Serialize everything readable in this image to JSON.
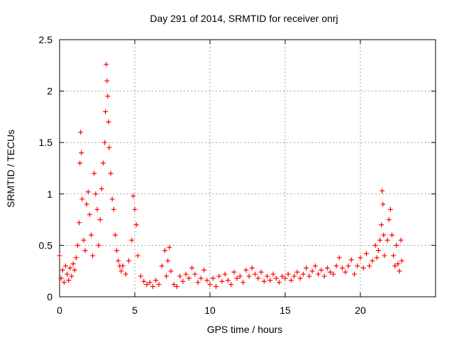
{
  "chart_data": {
    "type": "scatter",
    "title": "Day 291 of 2014, SRMTID for receiver onrj",
    "xlabel": "GPS time / hours",
    "ylabel": "SRMTID / TECUs",
    "xlim": [
      0,
      25
    ],
    "ylim": [
      0,
      2.5
    ],
    "xticks": [
      0,
      5,
      10,
      15,
      20
    ],
    "xtick_labels": [
      "0",
      "5",
      "10",
      "15",
      "20"
    ],
    "yticks": [
      0,
      0.5,
      1,
      1.5,
      2,
      2.5
    ],
    "ytick_labels": [
      "0",
      "0.5",
      "1",
      "1.5",
      "2",
      "2.5"
    ],
    "grid": true,
    "marker": "+",
    "marker_color": "#ff0000",
    "series": [
      {
        "name": "SRMTID",
        "points": [
          [
            0.0,
            0.4
          ],
          [
            0.1,
            0.18
          ],
          [
            0.2,
            0.26
          ],
          [
            0.3,
            0.14
          ],
          [
            0.4,
            0.3
          ],
          [
            0.5,
            0.22
          ],
          [
            0.6,
            0.16
          ],
          [
            0.7,
            0.28
          ],
          [
            0.8,
            0.2
          ],
          [
            0.9,
            0.32
          ],
          [
            1.0,
            0.26
          ],
          [
            1.1,
            0.38
          ],
          [
            1.2,
            0.5
          ],
          [
            1.3,
            0.72
          ],
          [
            1.35,
            1.3
          ],
          [
            1.4,
            1.6
          ],
          [
            1.45,
            1.4
          ],
          [
            1.5,
            0.95
          ],
          [
            1.6,
            0.55
          ],
          [
            1.7,
            0.45
          ],
          [
            1.8,
            0.9
          ],
          [
            1.9,
            1.02
          ],
          [
            2.0,
            0.8
          ],
          [
            2.1,
            0.6
          ],
          [
            2.2,
            0.4
          ],
          [
            2.3,
            1.2
          ],
          [
            2.4,
            1.0
          ],
          [
            2.5,
            0.85
          ],
          [
            2.6,
            0.5
          ],
          [
            2.7,
            0.75
          ],
          [
            2.8,
            1.05
          ],
          [
            2.9,
            1.3
          ],
          [
            3.0,
            1.5
          ],
          [
            3.05,
            1.8
          ],
          [
            3.1,
            2.26
          ],
          [
            3.15,
            2.1
          ],
          [
            3.2,
            1.95
          ],
          [
            3.25,
            1.7
          ],
          [
            3.3,
            1.45
          ],
          [
            3.4,
            1.2
          ],
          [
            3.5,
            0.95
          ],
          [
            3.6,
            0.85
          ],
          [
            3.7,
            0.6
          ],
          [
            3.8,
            0.45
          ],
          [
            3.9,
            0.35
          ],
          [
            4.0,
            0.3
          ],
          [
            4.1,
            0.25
          ],
          [
            4.2,
            0.3
          ],
          [
            4.4,
            0.22
          ],
          [
            4.6,
            0.35
          ],
          [
            4.8,
            0.55
          ],
          [
            4.9,
            0.98
          ],
          [
            5.0,
            0.85
          ],
          [
            5.1,
            0.7
          ],
          [
            5.2,
            0.4
          ],
          [
            5.4,
            0.2
          ],
          [
            5.6,
            0.15
          ],
          [
            5.8,
            0.12
          ],
          [
            6.0,
            0.14
          ],
          [
            6.2,
            0.1
          ],
          [
            6.4,
            0.16
          ],
          [
            6.6,
            0.12
          ],
          [
            6.8,
            0.3
          ],
          [
            7.0,
            0.45
          ],
          [
            7.1,
            0.2
          ],
          [
            7.2,
            0.35
          ],
          [
            7.3,
            0.48
          ],
          [
            7.4,
            0.25
          ],
          [
            7.6,
            0.12
          ],
          [
            7.8,
            0.1
          ],
          [
            8.0,
            0.2
          ],
          [
            8.2,
            0.15
          ],
          [
            8.4,
            0.22
          ],
          [
            8.6,
            0.18
          ],
          [
            8.8,
            0.28
          ],
          [
            9.0,
            0.22
          ],
          [
            9.2,
            0.14
          ],
          [
            9.4,
            0.18
          ],
          [
            9.6,
            0.26
          ],
          [
            9.8,
            0.16
          ],
          [
            10.0,
            0.12
          ],
          [
            10.2,
            0.18
          ],
          [
            10.4,
            0.1
          ],
          [
            10.6,
            0.2
          ],
          [
            10.8,
            0.15
          ],
          [
            11.0,
            0.22
          ],
          [
            11.2,
            0.16
          ],
          [
            11.4,
            0.12
          ],
          [
            11.6,
            0.24
          ],
          [
            11.8,
            0.18
          ],
          [
            12.0,
            0.2
          ],
          [
            12.2,
            0.14
          ],
          [
            12.4,
            0.26
          ],
          [
            12.6,
            0.2
          ],
          [
            12.8,
            0.28
          ],
          [
            13.0,
            0.22
          ],
          [
            13.2,
            0.18
          ],
          [
            13.4,
            0.24
          ],
          [
            13.6,
            0.15
          ],
          [
            13.8,
            0.2
          ],
          [
            14.0,
            0.16
          ],
          [
            14.2,
            0.22
          ],
          [
            14.4,
            0.18
          ],
          [
            14.6,
            0.14
          ],
          [
            14.8,
            0.2
          ],
          [
            15.0,
            0.18
          ],
          [
            15.2,
            0.22
          ],
          [
            15.4,
            0.16
          ],
          [
            15.6,
            0.2
          ],
          [
            15.8,
            0.24
          ],
          [
            16.0,
            0.18
          ],
          [
            16.2,
            0.22
          ],
          [
            16.4,
            0.28
          ],
          [
            16.6,
            0.2
          ],
          [
            16.8,
            0.25
          ],
          [
            17.0,
            0.3
          ],
          [
            17.2,
            0.22
          ],
          [
            17.4,
            0.26
          ],
          [
            17.6,
            0.2
          ],
          [
            17.8,
            0.28
          ],
          [
            18.0,
            0.24
          ],
          [
            18.2,
            0.22
          ],
          [
            18.4,
            0.3
          ],
          [
            18.6,
            0.38
          ],
          [
            18.8,
            0.28
          ],
          [
            19.0,
            0.24
          ],
          [
            19.2,
            0.3
          ],
          [
            19.4,
            0.36
          ],
          [
            19.6,
            0.22
          ],
          [
            19.8,
            0.3
          ],
          [
            20.0,
            0.38
          ],
          [
            20.2,
            0.28
          ],
          [
            20.4,
            0.42
          ],
          [
            20.6,
            0.3
          ],
          [
            20.8,
            0.35
          ],
          [
            21.0,
            0.5
          ],
          [
            21.1,
            0.38
          ],
          [
            21.2,
            0.45
          ],
          [
            21.3,
            0.55
          ],
          [
            21.4,
            0.7
          ],
          [
            21.45,
            1.03
          ],
          [
            21.5,
            0.9
          ],
          [
            21.55,
            0.6
          ],
          [
            21.6,
            0.4
          ],
          [
            21.8,
            0.55
          ],
          [
            21.9,
            0.75
          ],
          [
            22.0,
            0.85
          ],
          [
            22.1,
            0.6
          ],
          [
            22.2,
            0.4
          ],
          [
            22.3,
            0.3
          ],
          [
            22.4,
            0.5
          ],
          [
            22.5,
            0.32
          ],
          [
            22.6,
            0.25
          ],
          [
            22.7,
            0.55
          ],
          [
            22.75,
            0.35
          ]
        ]
      }
    ]
  }
}
